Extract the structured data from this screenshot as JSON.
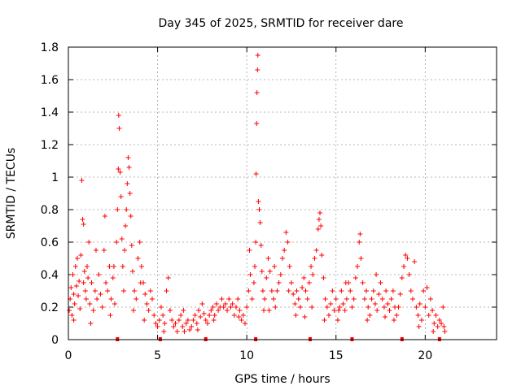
{
  "chart_data": {
    "type": "scatter",
    "title": "Day 345 of 2025, SRMTID for receiver dare",
    "xlabel": "GPS time / hours",
    "ylabel": "SRMTID / TECUs",
    "xlim": [
      0,
      24
    ],
    "ylim": [
      0,
      1.8
    ],
    "xticks": [
      0,
      5,
      10,
      15,
      20
    ],
    "xtick_labels": [
      "0",
      "5",
      "10",
      "15",
      "20"
    ],
    "yticks": [
      0,
      0.2,
      0.4,
      0.6,
      0.8,
      1.0,
      1.2,
      1.4,
      1.6,
      1.8
    ],
    "ytick_labels": [
      "0",
      "0.2",
      "0.4",
      "0.6",
      "0.8",
      "1",
      "1.2",
      "1.4",
      "1.6",
      "1.8"
    ],
    "grid": true,
    "marker": "+",
    "color": "#ff0000",
    "series": [
      {
        "name": "SRMTID",
        "points": [
          [
            0.05,
            0.18
          ],
          [
            0.1,
            0.25
          ],
          [
            0.15,
            0.32
          ],
          [
            0.2,
            0.15
          ],
          [
            0.25,
            0.4
          ],
          [
            0.3,
            0.28
          ],
          [
            0.35,
            0.22
          ],
          [
            0.4,
            0.45
          ],
          [
            0.45,
            0.33
          ],
          [
            0.5,
            0.5
          ],
          [
            0.55,
            0.27
          ],
          [
            0.6,
            0.36
          ],
          [
            0.65,
            0.19
          ],
          [
            0.7,
            0.52
          ],
          [
            0.75,
            0.98
          ],
          [
            0.8,
            0.74
          ],
          [
            0.85,
            0.71
          ],
          [
            0.9,
            0.42
          ],
          [
            0.95,
            0.3
          ],
          [
            1.0,
            0.25
          ],
          [
            1.05,
            0.45
          ],
          [
            1.1,
            0.38
          ],
          [
            1.15,
            0.6
          ],
          [
            1.2,
            0.22
          ],
          [
            1.3,
            0.35
          ],
          [
            1.4,
            0.18
          ],
          [
            1.5,
            0.3
          ],
          [
            1.6,
            0.25
          ],
          [
            1.7,
            0.4
          ],
          [
            1.8,
            0.28
          ],
          [
            1.9,
            0.2
          ],
          [
            2.0,
            0.55
          ],
          [
            2.05,
            0.76
          ],
          [
            2.1,
            0.35
          ],
          [
            2.2,
            0.3
          ],
          [
            2.3,
            0.45
          ],
          [
            2.4,
            0.25
          ],
          [
            2.5,
            0.38
          ],
          [
            2.6,
            0.22
          ],
          [
            2.7,
            0.6
          ],
          [
            2.75,
            0.8
          ],
          [
            2.8,
            1.05
          ],
          [
            2.82,
            1.38
          ],
          [
            2.85,
            1.3
          ],
          [
            2.9,
            1.03
          ],
          [
            2.95,
            0.88
          ],
          [
            3.0,
            0.62
          ],
          [
            3.05,
            0.45
          ],
          [
            3.1,
            0.3
          ],
          [
            3.15,
            0.55
          ],
          [
            3.2,
            0.7
          ],
          [
            3.25,
            0.8
          ],
          [
            3.3,
            0.96
          ],
          [
            3.35,
            1.12
          ],
          [
            3.4,
            1.06
          ],
          [
            3.45,
            0.9
          ],
          [
            3.5,
            0.76
          ],
          [
            3.55,
            0.58
          ],
          [
            3.6,
            0.42
          ],
          [
            3.7,
            0.3
          ],
          [
            3.8,
            0.25
          ],
          [
            3.9,
            0.5
          ],
          [
            4.0,
            0.6
          ],
          [
            4.1,
            0.45
          ],
          [
            4.2,
            0.35
          ],
          [
            4.3,
            0.28
          ],
          [
            4.4,
            0.22
          ],
          [
            4.5,
            0.18
          ],
          [
            4.6,
            0.3
          ],
          [
            4.7,
            0.25
          ],
          [
            4.8,
            0.15
          ],
          [
            4.9,
            0.1
          ],
          [
            5.0,
            0.08
          ],
          [
            5.1,
            0.12
          ],
          [
            5.2,
            0.2
          ],
          [
            5.3,
            0.15
          ],
          [
            5.4,
            0.1
          ],
          [
            5.5,
            0.3
          ],
          [
            5.6,
            0.38
          ],
          [
            5.7,
            0.18
          ],
          [
            5.8,
            0.12
          ],
          [
            5.9,
            0.08
          ],
          [
            6.0,
            0.1
          ],
          [
            6.1,
            0.05
          ],
          [
            6.2,
            0.12
          ],
          [
            6.3,
            0.15
          ],
          [
            6.4,
            0.08
          ],
          [
            6.5,
            0.05
          ],
          [
            6.6,
            0.1
          ],
          [
            6.7,
            0.12
          ],
          [
            6.8,
            0.06
          ],
          [
            6.9,
            0.08
          ],
          [
            7.0,
            0.12
          ],
          [
            7.1,
            0.15
          ],
          [
            7.2,
            0.1
          ],
          [
            7.3,
            0.18
          ],
          [
            7.4,
            0.14
          ],
          [
            7.5,
            0.22
          ],
          [
            7.6,
            0.16
          ],
          [
            7.7,
            0.12
          ],
          [
            7.8,
            0.1
          ],
          [
            7.9,
            0.15
          ],
          [
            8.0,
            0.18
          ],
          [
            8.1,
            0.2
          ],
          [
            8.2,
            0.15
          ],
          [
            8.3,
            0.22
          ],
          [
            8.4,
            0.18
          ],
          [
            8.5,
            0.2
          ],
          [
            8.6,
            0.25
          ],
          [
            8.7,
            0.2
          ],
          [
            8.8,
            0.22
          ],
          [
            8.9,
            0.18
          ],
          [
            9.0,
            0.25
          ],
          [
            9.1,
            0.2
          ],
          [
            9.2,
            0.22
          ],
          [
            9.3,
            0.15
          ],
          [
            9.4,
            0.2
          ],
          [
            9.5,
            0.25
          ],
          [
            9.6,
            0.18
          ],
          [
            9.7,
            0.12
          ],
          [
            9.8,
            0.15
          ],
          [
            9.9,
            0.1
          ],
          [
            10.0,
            0.2
          ],
          [
            10.1,
            0.3
          ],
          [
            10.15,
            0.55
          ],
          [
            10.2,
            0.4
          ],
          [
            10.3,
            0.25
          ],
          [
            10.4,
            0.35
          ],
          [
            10.45,
            0.45
          ],
          [
            10.5,
            0.6
          ],
          [
            10.52,
            1.02
          ],
          [
            10.55,
            1.33
          ],
          [
            10.57,
            1.52
          ],
          [
            10.6,
            1.66
          ],
          [
            10.62,
            1.75
          ],
          [
            10.65,
            0.85
          ],
          [
            10.7,
            0.8
          ],
          [
            10.75,
            0.72
          ],
          [
            10.8,
            0.58
          ],
          [
            10.85,
            0.42
          ],
          [
            10.9,
            0.3
          ],
          [
            11.0,
            0.25
          ],
          [
            11.1,
            0.38
          ],
          [
            11.2,
            0.5
          ],
          [
            11.3,
            0.42
          ],
          [
            11.4,
            0.3
          ],
          [
            11.5,
            0.25
          ],
          [
            11.6,
            0.2
          ],
          [
            11.7,
            0.3
          ],
          [
            11.8,
            0.35
          ],
          [
            11.9,
            0.4
          ],
          [
            12.0,
            0.5
          ],
          [
            12.1,
            0.55
          ],
          [
            12.2,
            0.66
          ],
          [
            12.3,
            0.6
          ],
          [
            12.4,
            0.45
          ],
          [
            12.5,
            0.35
          ],
          [
            12.6,
            0.28
          ],
          [
            12.7,
            0.22
          ],
          [
            12.8,
            0.3
          ],
          [
            12.9,
            0.25
          ],
          [
            13.0,
            0.2
          ],
          [
            13.1,
            0.32
          ],
          [
            13.2,
            0.38
          ],
          [
            13.3,
            0.3
          ],
          [
            13.4,
            0.25
          ],
          [
            13.5,
            0.35
          ],
          [
            13.6,
            0.45
          ],
          [
            13.7,
            0.4
          ],
          [
            13.8,
            0.5
          ],
          [
            13.9,
            0.55
          ],
          [
            14.0,
            0.68
          ],
          [
            14.05,
            0.74
          ],
          [
            14.1,
            0.78
          ],
          [
            14.15,
            0.7
          ],
          [
            14.2,
            0.52
          ],
          [
            14.3,
            0.38
          ],
          [
            14.4,
            0.25
          ],
          [
            14.5,
            0.2
          ],
          [
            14.6,
            0.15
          ],
          [
            14.7,
            0.22
          ],
          [
            14.8,
            0.3
          ],
          [
            14.9,
            0.18
          ],
          [
            15.0,
            0.25
          ],
          [
            15.1,
            0.12
          ],
          [
            15.2,
            0.2
          ],
          [
            15.3,
            0.3
          ],
          [
            15.4,
            0.22
          ],
          [
            15.5,
            0.18
          ],
          [
            15.6,
            0.25
          ],
          [
            15.7,
            0.35
          ],
          [
            15.8,
            0.3
          ],
          [
            15.9,
            0.2
          ],
          [
            16.0,
            0.25
          ],
          [
            16.1,
            0.38
          ],
          [
            16.2,
            0.45
          ],
          [
            16.3,
            0.6
          ],
          [
            16.35,
            0.65
          ],
          [
            16.4,
            0.5
          ],
          [
            16.5,
            0.35
          ],
          [
            16.6,
            0.25
          ],
          [
            16.7,
            0.3
          ],
          [
            16.8,
            0.2
          ],
          [
            16.9,
            0.15
          ],
          [
            17.0,
            0.25
          ],
          [
            17.1,
            0.3
          ],
          [
            17.2,
            0.22
          ],
          [
            17.3,
            0.18
          ],
          [
            17.4,
            0.28
          ],
          [
            17.5,
            0.35
          ],
          [
            17.6,
            0.25
          ],
          [
            17.7,
            0.2
          ],
          [
            17.8,
            0.3
          ],
          [
            17.9,
            0.22
          ],
          [
            18.0,
            0.18
          ],
          [
            18.1,
            0.25
          ],
          [
            18.2,
            0.3
          ],
          [
            18.3,
            0.2
          ],
          [
            18.4,
            0.15
          ],
          [
            18.5,
            0.2
          ],
          [
            18.6,
            0.28
          ],
          [
            18.7,
            0.38
          ],
          [
            18.8,
            0.45
          ],
          [
            18.9,
            0.52
          ],
          [
            19.0,
            0.5
          ],
          [
            19.1,
            0.4
          ],
          [
            19.2,
            0.3
          ],
          [
            19.3,
            0.25
          ],
          [
            19.4,
            0.48
          ],
          [
            19.5,
            0.2
          ],
          [
            19.6,
            0.15
          ],
          [
            19.7,
            0.22
          ],
          [
            19.8,
            0.12
          ],
          [
            19.9,
            0.3
          ],
          [
            20.0,
            0.2
          ],
          [
            20.1,
            0.32
          ],
          [
            20.2,
            0.15
          ],
          [
            20.3,
            0.25
          ],
          [
            20.4,
            0.18
          ],
          [
            20.5,
            0.1
          ],
          [
            20.6,
            0.15
          ],
          [
            20.7,
            0.08
          ],
          [
            20.8,
            0.12
          ],
          [
            20.9,
            0.1
          ],
          [
            21.0,
            0.2
          ],
          [
            21.05,
            0.08
          ],
          [
            21.1,
            0.05
          ],
          [
            0.3,
            0.12
          ],
          [
            1.25,
            0.1
          ],
          [
            2.35,
            0.15
          ],
          [
            4.25,
            0.12
          ],
          [
            6.45,
            0.18
          ],
          [
            8.15,
            0.12
          ],
          [
            9.55,
            0.14
          ],
          [
            11.25,
            0.18
          ],
          [
            12.75,
            0.15
          ],
          [
            13.25,
            0.14
          ],
          [
            15.15,
            0.18
          ],
          [
            16.75,
            0.12
          ],
          [
            17.75,
            0.14
          ],
          [
            18.25,
            0.12
          ],
          [
            19.65,
            0.08
          ],
          [
            20.45,
            0.05
          ],
          [
            3.65,
            0.18
          ],
          [
            5.35,
            0.05
          ],
          [
            7.25,
            0.06
          ],
          [
            10.95,
            0.18
          ],
          [
            14.35,
            0.12
          ],
          [
            12.35,
            0.3
          ],
          [
            13.65,
            0.2
          ],
          [
            0.85,
            0.35
          ],
          [
            1.55,
            0.55
          ],
          [
            2.55,
            0.45
          ],
          [
            4.05,
            0.35
          ],
          [
            11.55,
            0.45
          ],
          [
            15.55,
            0.35
          ],
          [
            17.25,
            0.4
          ]
        ]
      }
    ],
    "axis_markers_x": [
      2.75,
      5.15,
      7.7,
      10.5,
      13.55,
      15.9,
      18.7,
      20.8
    ]
  }
}
